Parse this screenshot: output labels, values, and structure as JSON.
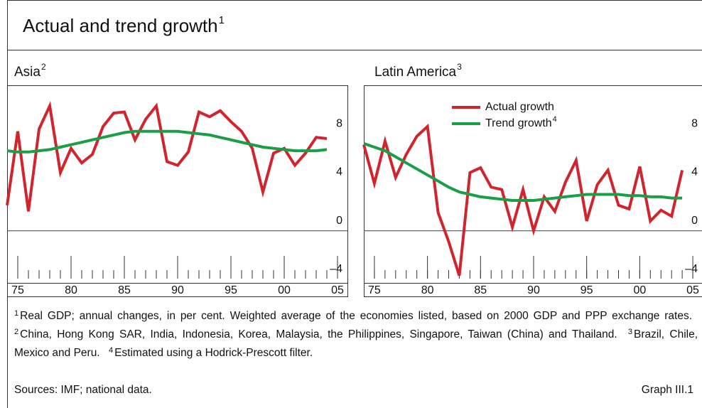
{
  "title": "Actual and trend growth",
  "title_note": "1",
  "chart_data": [
    {
      "type": "line",
      "title": "Asia",
      "title_note": "2",
      "x": [
        1974,
        1975,
        1976,
        1977,
        1978,
        1979,
        1980,
        1981,
        1982,
        1983,
        1984,
        1985,
        1986,
        1987,
        1988,
        1989,
        1990,
        1991,
        1992,
        1993,
        1994,
        1995,
        1996,
        1997,
        1998,
        1999,
        2000,
        2001,
        2002,
        2003,
        2004
      ],
      "xlim": [
        1974,
        2006
      ],
      "xticks": [
        {
          "value": 1975,
          "label": "75"
        },
        {
          "value": 1980,
          "label": "80"
        },
        {
          "value": 1985,
          "label": "85"
        },
        {
          "value": 1990,
          "label": "90"
        },
        {
          "value": 1995,
          "label": "95"
        },
        {
          "value": 2000,
          "label": "00"
        },
        {
          "value": 2005,
          "label": "05"
        }
      ],
      "xticks_minor": [
        1975,
        1976,
        1977,
        1978,
        1979,
        1980,
        1981,
        1982,
        1983,
        1984,
        1985,
        1986,
        1987,
        1988,
        1989,
        1990,
        1991,
        1992,
        1993,
        1994,
        1995,
        1996,
        1997,
        1998,
        1999,
        2000,
        2001,
        2002,
        2003,
        2004,
        2005
      ],
      "ylim": [
        -4.3,
        12
      ],
      "yticks": [
        {
          "value": -4,
          "label": "–4"
        },
        0,
        4,
        8
      ],
      "series": [
        {
          "color": "#d1252e",
          "values": [
            2.1,
            8.2,
            1.6,
            8.4,
            10.3,
            4.8,
            6.8,
            5.6,
            6.3,
            8.6,
            9.7,
            9.8,
            7.5,
            9.2,
            10.3,
            5.7,
            5.4,
            6.5,
            9.8,
            9.4,
            9.9,
            9.0,
            8.2,
            6.8,
            3.2,
            6.4,
            6.8,
            5.4,
            6.4,
            7.7,
            7.6
          ]
        },
        {
          "color": "#1a9e48",
          "values": [
            6.6,
            6.5,
            6.5,
            6.6,
            6.7,
            6.9,
            7.1,
            7.3,
            7.5,
            7.7,
            7.9,
            8.1,
            8.2,
            8.2,
            8.2,
            8.2,
            8.2,
            8.1,
            8.0,
            7.9,
            7.7,
            7.5,
            7.3,
            7.1,
            6.9,
            6.8,
            6.7,
            6.6,
            6.6,
            6.6,
            6.7
          ]
        }
      ]
    },
    {
      "type": "line",
      "title": "Latin America",
      "title_note": "3",
      "legend": "top",
      "x": [
        1974,
        1975,
        1976,
        1977,
        1978,
        1979,
        1980,
        1981,
        1982,
        1983,
        1984,
        1985,
        1986,
        1987,
        1988,
        1989,
        1990,
        1991,
        1992,
        1993,
        1994,
        1995,
        1996,
        1997,
        1998,
        1999,
        2000,
        2001,
        2002,
        2003,
        2004
      ],
      "xlim": [
        1974,
        2006
      ],
      "xticks": [
        {
          "value": 1975,
          "label": "75"
        },
        {
          "value": 1980,
          "label": "80"
        },
        {
          "value": 1985,
          "label": "85"
        },
        {
          "value": 1990,
          "label": "90"
        },
        {
          "value": 1995,
          "label": "95"
        },
        {
          "value": 2000,
          "label": "00"
        },
        {
          "value": 2005,
          "label": "05"
        }
      ],
      "xticks_minor": [
        1975,
        1976,
        1977,
        1978,
        1979,
        1980,
        1981,
        1982,
        1983,
        1984,
        1985,
        1986,
        1987,
        1988,
        1989,
        1990,
        1991,
        1992,
        1993,
        1994,
        1995,
        1996,
        1997,
        1998,
        1999,
        2000,
        2001,
        2002,
        2003,
        2004,
        2005
      ],
      "ylim": [
        -4.3,
        12
      ],
      "yticks": [
        {
          "value": -4,
          "label": "–4"
        },
        0,
        4,
        8
      ],
      "series": [
        {
          "name": "Actual growth",
          "color": "#d1252e",
          "values": [
            7.1,
            3.9,
            7.4,
            4.4,
            6.3,
            7.8,
            8.6,
            1.5,
            -0.9,
            -3.7,
            4.8,
            5.2,
            3.6,
            3.4,
            0.3,
            3.4,
            0.0,
            2.8,
            1.6,
            4.0,
            5.8,
            0.8,
            3.8,
            5.0,
            2.1,
            1.8,
            5.3,
            0.8,
            1.7,
            1.2,
            5.0
          ]
        },
        {
          "name": "Trend growth",
          "note": "4",
          "color": "#1a9e48",
          "values": [
            7.2,
            6.9,
            6.6,
            6.1,
            5.6,
            5.1,
            4.6,
            4.1,
            3.6,
            3.2,
            3.0,
            2.8,
            2.7,
            2.6,
            2.5,
            2.5,
            2.5,
            2.6,
            2.7,
            2.8,
            2.9,
            3.0,
            3.0,
            3.0,
            3.0,
            2.9,
            2.9,
            2.8,
            2.8,
            2.7,
            2.7
          ]
        }
      ]
    }
  ],
  "footnotes": [
    {
      "mark": "1",
      "text": "Real GDP; annual changes, in per cent. Weighted average of the economies listed, based on 2000 GDP and PPP exchange rates."
    },
    {
      "mark": "2",
      "text": "China, Hong Kong SAR, India, Indonesia, Korea, Malaysia, the Philippines, Singapore, Taiwan (China) and Thailand."
    },
    {
      "mark": "3",
      "text": "Brazil, Chile, Mexico and Peru."
    },
    {
      "mark": "4",
      "text": "Estimated using a Hodrick-Prescott filter."
    }
  ],
  "sources": "Sources: IMF; national data.",
  "graph_label": "Graph III.1"
}
